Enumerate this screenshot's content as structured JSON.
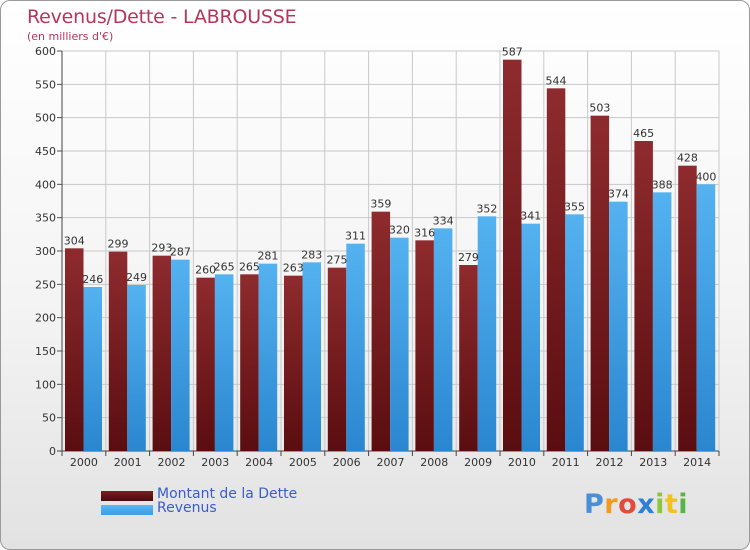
{
  "chart_data": {
    "type": "bar",
    "title": "Revenus/Dette - LABROUSSE",
    "subtitle": "(en milliers d'€)",
    "categories": [
      "2000",
      "2001",
      "2002",
      "2003",
      "2004",
      "2005",
      "2006",
      "2007",
      "2008",
      "2009",
      "2010",
      "2011",
      "2012",
      "2013",
      "2014"
    ],
    "series": [
      {
        "name": "Montant de la Dette",
        "color": "#7b1e22",
        "values": [
          304,
          299,
          293,
          260,
          265,
          263,
          275,
          359,
          316,
          279,
          587,
          544,
          503,
          465,
          428
        ]
      },
      {
        "name": "Revenus",
        "color": "#3d9de3",
        "values": [
          246,
          249,
          287,
          265,
          281,
          283,
          311,
          320,
          334,
          352,
          341,
          355,
          374,
          388,
          400
        ]
      }
    ],
    "ylim": [
      0,
      600
    ],
    "yticks": [
      0,
      50,
      100,
      150,
      200,
      250,
      300,
      350,
      400,
      450,
      500,
      550,
      600
    ],
    "grid": true,
    "legend_position": "bottom-left"
  },
  "brand": {
    "logo_text": "Proxiti"
  }
}
